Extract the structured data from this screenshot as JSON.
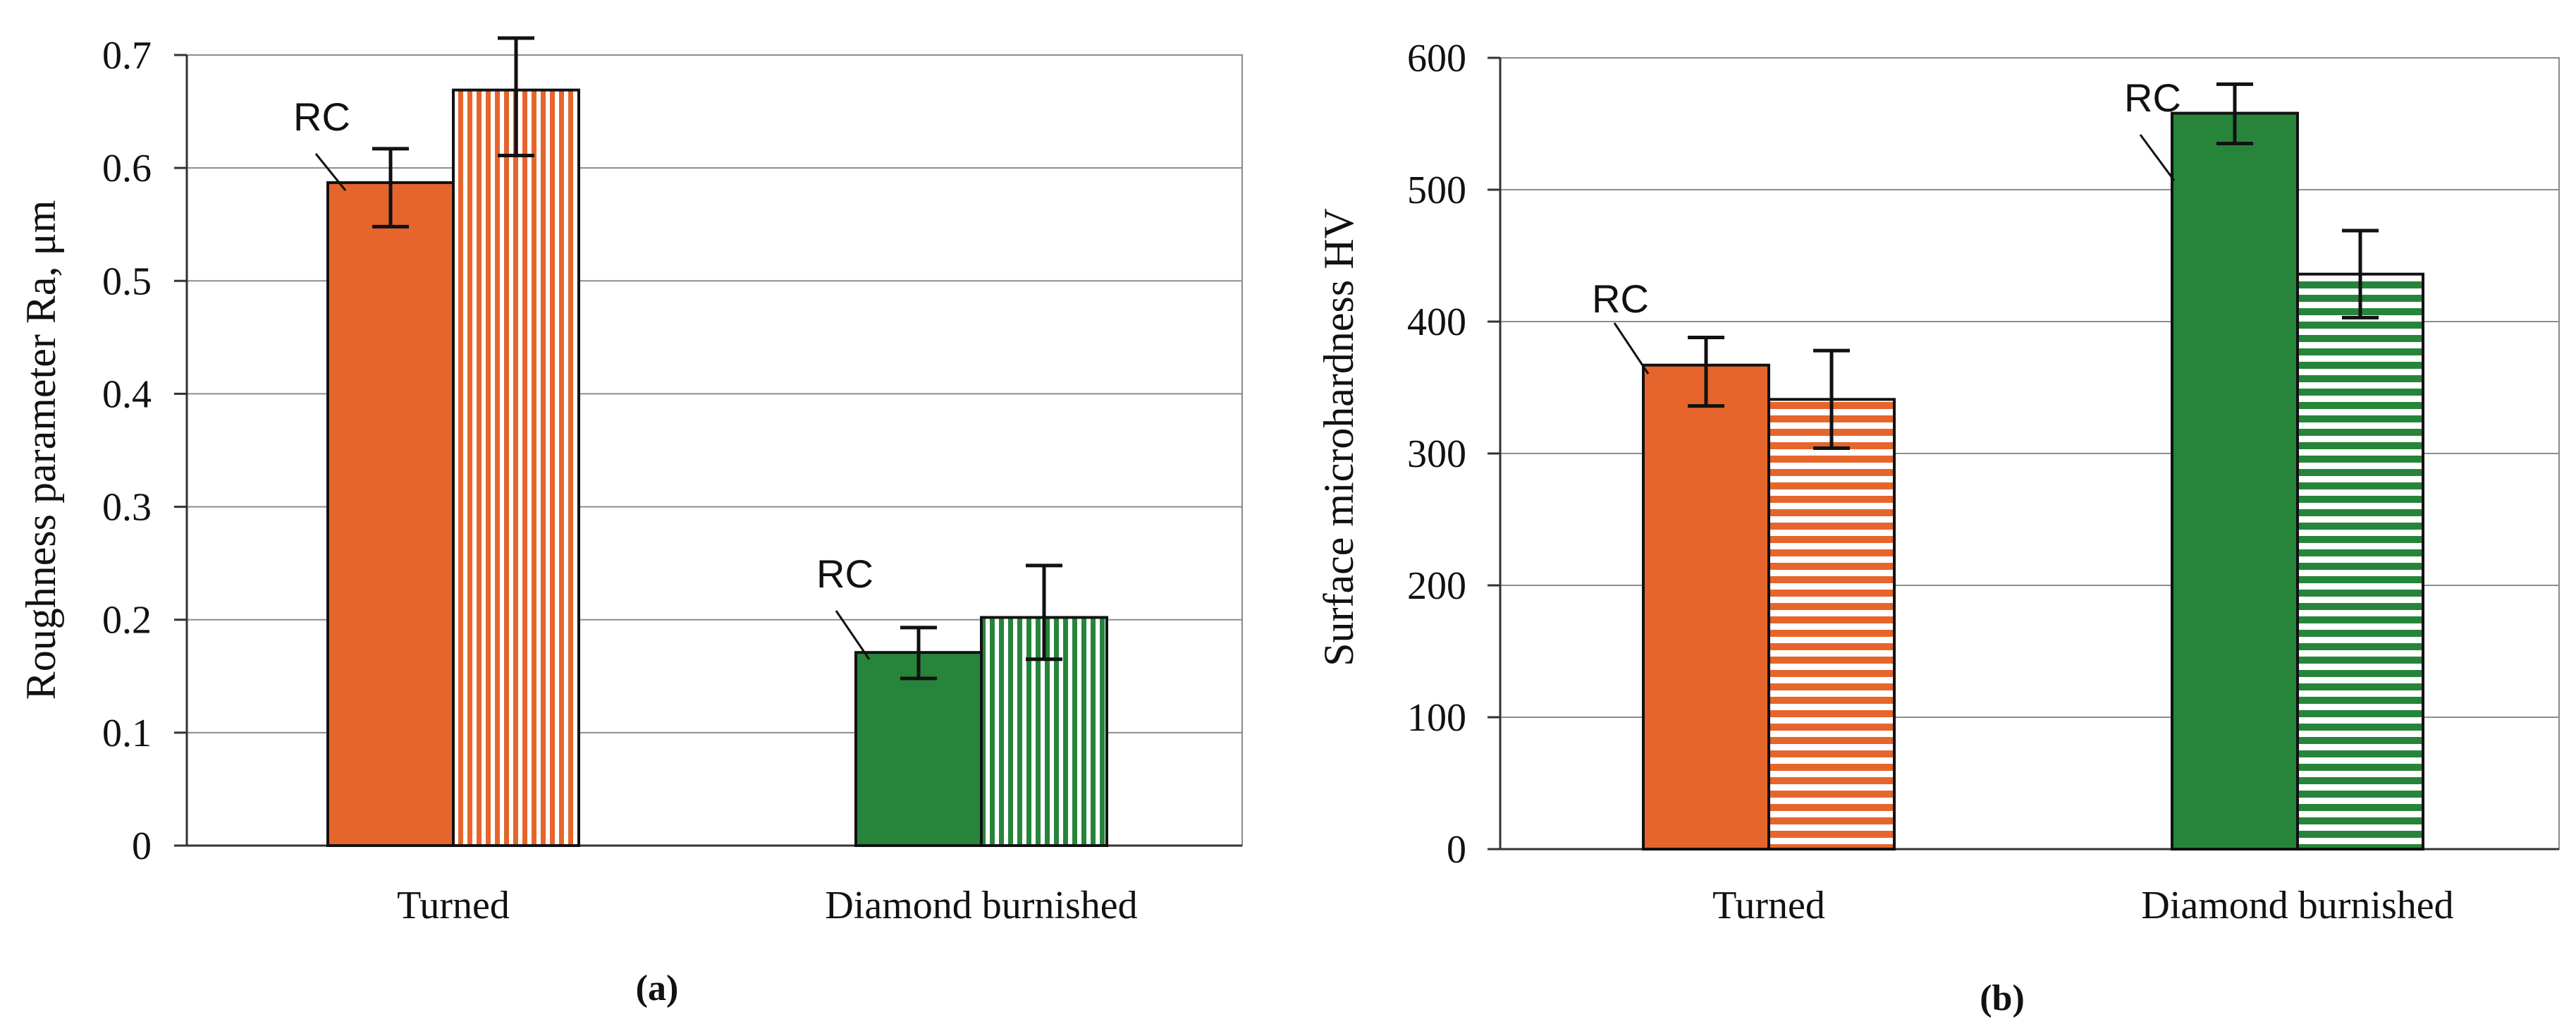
{
  "colors": {
    "orange": "#e5652c",
    "green": "#26853a",
    "grid": "#8c8c8c",
    "axis": "#333333",
    "outline": "#111111"
  },
  "chart_data": [
    {
      "type": "bar",
      "panel_label": "(a)",
      "ylabel": "Roughness parameter Ra, μm",
      "xlabel": "",
      "ylim": [
        0,
        0.7
      ],
      "yticks": [
        0,
        0.1,
        0.2,
        0.3,
        0.4,
        0.5,
        0.6,
        0.7
      ],
      "ytick_labels": [
        "0",
        "0.1",
        "0.2",
        "0.3",
        "0.4",
        "0.5",
        "0.6",
        "0.7"
      ],
      "grid": true,
      "categories": [
        "Turned",
        "Diamond burnished"
      ],
      "bars": [
        {
          "category": "Turned",
          "value": 0.587,
          "err_low": 0.548,
          "err_high": 0.617,
          "fill": "solid",
          "color": "orange",
          "annotation": "RC"
        },
        {
          "category": "Turned",
          "value": 0.669,
          "err_low": 0.611,
          "err_high": 0.715,
          "fill": "vertical-stripes",
          "color": "orange"
        },
        {
          "category": "Diamond burnished",
          "value": 0.171,
          "err_low": 0.148,
          "err_high": 0.193,
          "fill": "solid",
          "color": "green",
          "annotation": "RC"
        },
        {
          "category": "Diamond burnished",
          "value": 0.202,
          "err_low": 0.165,
          "err_high": 0.248,
          "fill": "vertical-stripes",
          "color": "green"
        }
      ]
    },
    {
      "type": "bar",
      "panel_label": "(b)",
      "ylabel": "Surface microhardness HV",
      "xlabel": "",
      "ylim": [
        0,
        600
      ],
      "yticks": [
        0,
        100,
        200,
        300,
        400,
        500,
        600
      ],
      "ytick_labels": [
        "0",
        "100",
        "200",
        "300",
        "400",
        "500",
        "600"
      ],
      "grid": true,
      "categories": [
        "Turned",
        "Diamond burnished"
      ],
      "bars": [
        {
          "category": "Turned",
          "value": 367,
          "err_low": 336,
          "err_high": 388,
          "fill": "solid",
          "color": "orange",
          "annotation": "RC"
        },
        {
          "category": "Turned",
          "value": 341,
          "err_low": 304,
          "err_high": 378,
          "fill": "horizontal-stripes",
          "color": "orange"
        },
        {
          "category": "Diamond burnished",
          "value": 558,
          "err_low": 535,
          "err_high": 580,
          "fill": "solid",
          "color": "green",
          "annotation": "RC"
        },
        {
          "category": "Diamond burnished",
          "value": 436,
          "err_low": 403,
          "err_high": 469,
          "fill": "horizontal-stripes",
          "color": "green"
        }
      ]
    }
  ]
}
